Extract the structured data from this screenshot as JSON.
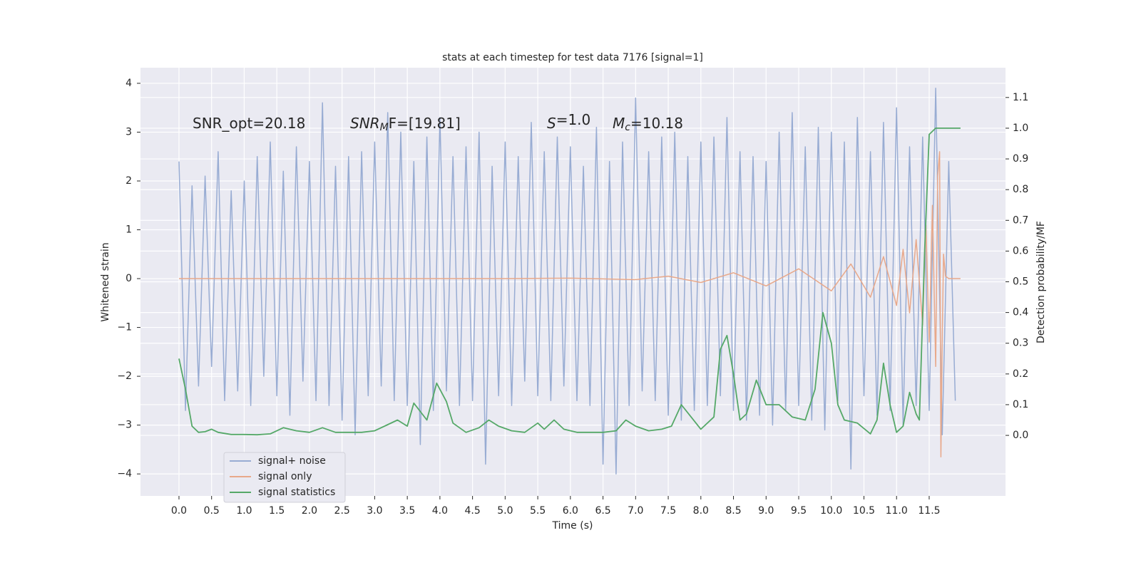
{
  "chart_data": {
    "type": "line",
    "title": "stats at each timestep for test data 7176 [signal=1]",
    "xlabel": "Time (s)",
    "ylabel": "Whitened strain",
    "y2label": "Detection probability/MF",
    "annotations": [
      [
        "SNR_opt=20.18"
      ],
      [
        "SNR",
        "M",
        "F=[19.81]"
      ],
      [
        "S",
        "",
        "=1.0"
      ],
      [
        "M",
        "c",
        "=10.18"
      ]
    ],
    "xlim": [
      -0.59,
      12.67
    ],
    "ylim": [
      -4.45,
      4.32
    ],
    "y2lim": [
      -0.197,
      1.197
    ],
    "xticks": [
      {
        "value": 0,
        "label": "0.0"
      },
      0.5,
      {
        "value": 1,
        "label": "1.0"
      },
      1.5,
      {
        "value": 2,
        "label": "2.0"
      },
      2.5,
      {
        "value": 3,
        "label": "3.0"
      },
      3.5,
      {
        "value": 4,
        "label": "4.0"
      },
      4.5,
      {
        "value": 5,
        "label": "5.0"
      },
      5.5,
      {
        "value": 6,
        "label": "6.0"
      },
      6.5,
      {
        "value": 7,
        "label": "7.0"
      },
      7.5,
      {
        "value": 8,
        "label": "8.0"
      },
      8.5,
      {
        "value": 9,
        "label": "9.0"
      },
      9.5,
      {
        "value": 10,
        "label": "10.0"
      },
      10.5,
      {
        "value": 11,
        "label": "11.0"
      },
      11.5
    ],
    "yticks": [
      {
        "value": -4,
        "label": "−4"
      },
      {
        "value": -3,
        "label": "−3"
      },
      {
        "value": -2,
        "label": "−2"
      },
      {
        "value": -1,
        "label": "−1"
      },
      0,
      1,
      2,
      3,
      4
    ],
    "y2ticks": [
      {
        "value": 0,
        "label": "0.0"
      },
      0.1,
      0.2,
      0.3,
      0.4,
      0.5,
      0.6,
      0.7,
      0.8,
      0.9,
      {
        "value": 1,
        "label": "1.0"
      },
      1.1
    ],
    "grid": true,
    "legend": "lower left",
    "series": [
      {
        "name": "signal+ noise",
        "color": "#98acd3",
        "x": [
          0,
          0.1,
          0.2,
          0.3,
          0.4,
          0.5,
          0.6,
          0.7,
          0.8,
          0.9,
          1,
          1.1,
          1.2,
          1.3,
          1.4,
          1.5,
          1.6,
          1.7,
          1.8,
          1.9,
          2,
          2.1,
          2.2,
          2.3,
          2.4,
          2.5,
          2.6,
          2.7,
          2.8,
          2.9,
          3,
          3.1,
          3.2,
          3.3,
          3.4,
          3.5,
          3.6,
          3.7,
          3.8,
          3.9,
          4,
          4.1,
          4.2,
          4.3,
          4.4,
          4.5,
          4.6,
          4.7,
          4.8,
          4.9,
          5,
          5.1,
          5.2,
          5.3,
          5.4,
          5.5,
          5.6,
          5.7,
          5.8,
          5.9,
          6,
          6.1,
          6.2,
          6.3,
          6.4,
          6.5,
          6.6,
          6.7,
          6.8,
          6.9,
          7,
          7.1,
          7.2,
          7.3,
          7.4,
          7.5,
          7.6,
          7.7,
          7.8,
          7.9,
          8,
          8.1,
          8.2,
          8.3,
          8.4,
          8.5,
          8.6,
          8.7,
          8.8,
          8.9,
          9,
          9.1,
          9.2,
          9.3,
          9.4,
          9.5,
          9.6,
          9.7,
          9.8,
          9.9,
          10,
          10.1,
          10.2,
          10.3,
          10.4,
          10.5,
          10.6,
          10.7,
          10.8,
          10.9,
          11,
          11.1,
          11.2,
          11.3,
          11.4,
          11.5,
          11.6,
          11.7,
          11.8,
          11.9
        ],
        "values": [
          2.4,
          -2.7,
          1.9,
          -2.2,
          2.1,
          -1.8,
          2.6,
          -2.5,
          1.8,
          -2.3,
          2.0,
          -2.6,
          2.5,
          -2.0,
          2.8,
          -2.4,
          2.2,
          -2.8,
          2.7,
          -2.1,
          2.4,
          -2.5,
          3.6,
          -2.6,
          2.3,
          -2.9,
          2.5,
          -3.2,
          2.6,
          -2.4,
          2.8,
          -2.2,
          3.4,
          -2.5,
          3.0,
          -2.6,
          2.4,
          -3.4,
          2.9,
          -2.7,
          3.3,
          -2.3,
          2.5,
          -2.6,
          2.7,
          -2.5,
          3.0,
          -3.8,
          2.3,
          -2.4,
          2.8,
          -2.6,
          2.5,
          -2.1,
          3.2,
          -2.4,
          2.6,
          -2.5,
          2.9,
          -2.2,
          2.7,
          -2.5,
          2.3,
          -2.6,
          3.1,
          -3.8,
          2.4,
          -4.0,
          2.8,
          -2.6,
          3.7,
          -2.3,
          2.6,
          -2.5,
          2.9,
          -2.8,
          3.0,
          -2.9,
          2.5,
          -2.7,
          2.8,
          -2.6,
          2.9,
          -2.4,
          3.3,
          -2.7,
          2.6,
          -2.9,
          2.5,
          -2.8,
          2.4,
          -3.0,
          3.0,
          -2.7,
          3.4,
          -2.6,
          2.7,
          -2.9,
          3.1,
          -3.1,
          3.0,
          -2.5,
          2.8,
          -3.9,
          3.3,
          -2.4,
          2.6,
          -2.8,
          3.2,
          -2.7,
          3.5,
          -3.0,
          2.7,
          -2.6,
          2.9,
          -2.7,
          3.9,
          -3.2,
          2.4,
          -2.5
        ]
      },
      {
        "name": "signal only",
        "color": "#e8a88a",
        "x": [
          0,
          1,
          2,
          3,
          4,
          5,
          6,
          7,
          7.5,
          8,
          8.5,
          9,
          9.5,
          10,
          10.3,
          10.6,
          10.8,
          11.0,
          11.1,
          11.2,
          11.3,
          11.4,
          11.45,
          11.5,
          11.55,
          11.6,
          11.63,
          11.66,
          11.68,
          11.7,
          11.72,
          11.75,
          11.8,
          11.98
        ],
        "values": [
          0,
          0,
          0,
          0,
          0,
          0,
          0.01,
          -0.02,
          0.05,
          -0.08,
          0.12,
          -0.15,
          0.2,
          -0.25,
          0.3,
          -0.38,
          0.45,
          -0.55,
          0.6,
          -0.7,
          0.8,
          -0.95,
          1.1,
          -1.3,
          1.5,
          -1.8,
          2.1,
          2.6,
          -3.65,
          -1.2,
          0.5,
          0.05,
          0,
          0
        ]
      },
      {
        "name": "signal statistics",
        "color": "#55a868",
        "axis": "y2",
        "x": [
          0,
          0.1,
          0.2,
          0.3,
          0.4,
          0.5,
          0.6,
          0.8,
          1.0,
          1.2,
          1.4,
          1.6,
          1.8,
          2.0,
          2.2,
          2.4,
          2.6,
          2.8,
          3.0,
          3.2,
          3.35,
          3.5,
          3.6,
          3.8,
          3.95,
          4.1,
          4.2,
          4.4,
          4.6,
          4.75,
          4.9,
          5.1,
          5.3,
          5.5,
          5.6,
          5.75,
          5.9,
          6.1,
          6.5,
          6.7,
          6.85,
          7.0,
          7.2,
          7.4,
          7.55,
          7.7,
          7.85,
          8.0,
          8.2,
          8.3,
          8.4,
          8.5,
          8.6,
          8.7,
          8.85,
          9.0,
          9.1,
          9.2,
          9.4,
          9.6,
          9.75,
          9.87,
          10.0,
          10.1,
          10.2,
          10.4,
          10.6,
          10.7,
          10.8,
          10.9,
          11.0,
          11.1,
          11.2,
          11.3,
          11.35,
          11.43,
          11.5,
          11.6,
          11.98
        ],
        "values": [
          0.25,
          0.15,
          0.03,
          0.01,
          0.012,
          0.02,
          0.01,
          0.003,
          0.003,
          0.002,
          0.005,
          0.025,
          0.015,
          0.01,
          0.025,
          0.01,
          0.01,
          0.01,
          0.015,
          0.035,
          0.05,
          0.03,
          0.105,
          0.05,
          0.17,
          0.11,
          0.04,
          0.01,
          0.025,
          0.05,
          0.03,
          0.015,
          0.01,
          0.04,
          0.02,
          0.05,
          0.02,
          0.01,
          0.01,
          0.015,
          0.05,
          0.03,
          0.015,
          0.02,
          0.03,
          0.1,
          0.06,
          0.02,
          0.06,
          0.28,
          0.325,
          0.2,
          0.05,
          0.07,
          0.18,
          0.1,
          0.1,
          0.1,
          0.06,
          0.05,
          0.15,
          0.4,
          0.3,
          0.1,
          0.05,
          0.04,
          0.005,
          0.05,
          0.235,
          0.1,
          0.01,
          0.03,
          0.14,
          0.07,
          0.05,
          0.6,
          0.98,
          1.0,
          1.0
        ]
      }
    ]
  }
}
